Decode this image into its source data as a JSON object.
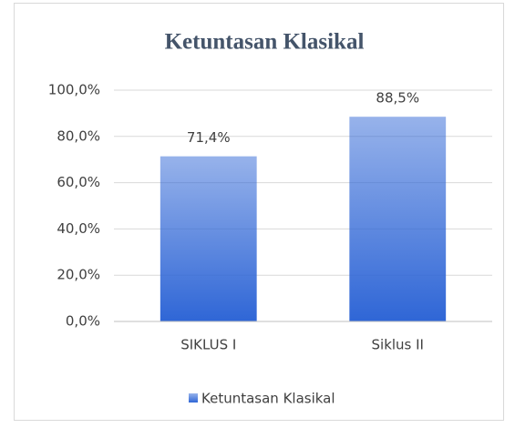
{
  "chart_data": {
    "type": "bar",
    "title": "Ketuntasan Klasikal",
    "categories": [
      "SIKLUS I",
      "Siklus II"
    ],
    "series": [
      {
        "name": "Ketuntasan Klasikal",
        "color": "#2f66d6",
        "values": [
          71.4,
          88.5
        ],
        "value_labels": [
          "71,4%",
          "88,5%"
        ]
      }
    ],
    "ylim": [
      0,
      100
    ],
    "yticks": [
      {
        "value": 0,
        "label": "0,0%"
      },
      {
        "value": 20,
        "label": "20,0%"
      },
      {
        "value": 40,
        "label": "40,0%"
      },
      {
        "value": 60,
        "label": "60,0%"
      },
      {
        "value": 80,
        "label": "80,0%"
      },
      {
        "value": 100,
        "label": "100,0%"
      }
    ],
    "grid": true,
    "legend": "bottom"
  }
}
